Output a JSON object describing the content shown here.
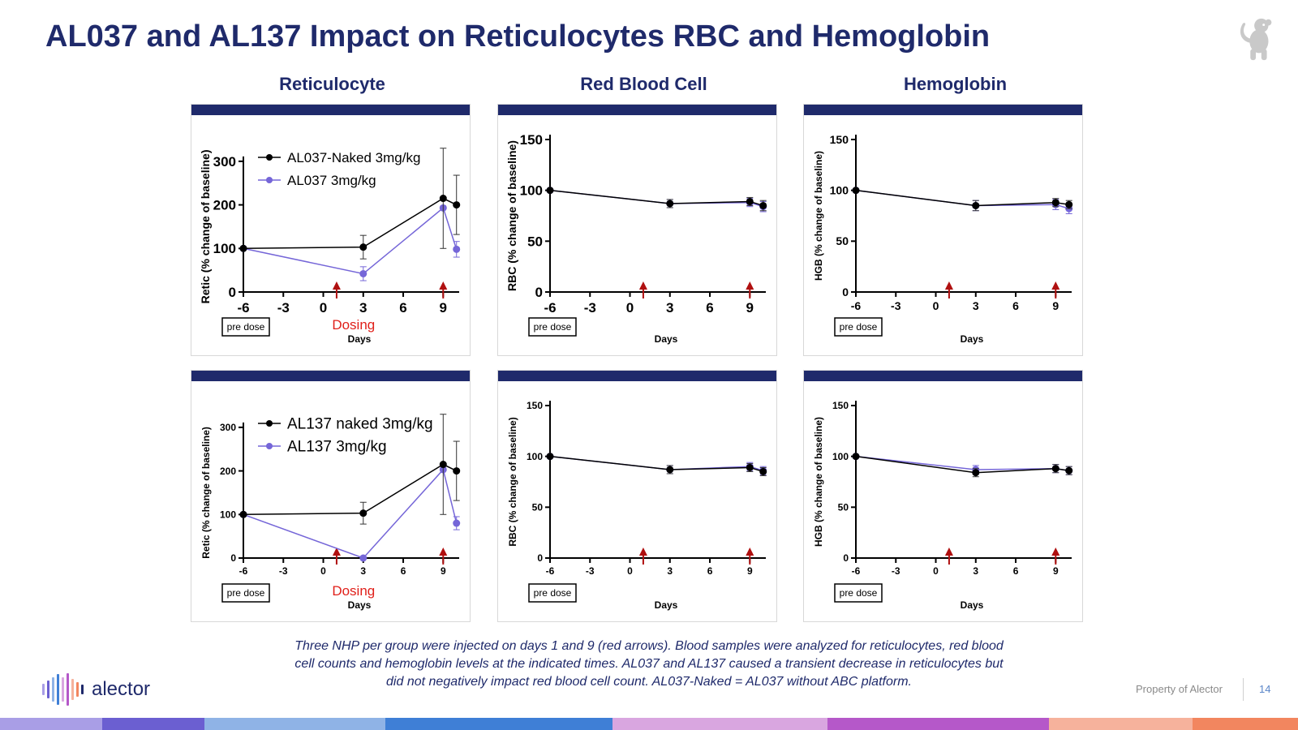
{
  "title": "AL037 and AL137 Impact on Reticulocytes RBC and Hemoglobin",
  "columns": [
    "Reticulocyte",
    "Red Blood Cell",
    "Hemoglobin"
  ],
  "caption": [
    "Three NHP per group were injected on days 1 and 9 (red arrows). Blood samples were analyzed for reticulocytes, red blood",
    "cell counts and hemoglobin levels at the indicated times. AL037 and AL137 caused a transient decrease in reticulocytes but",
    "did not negatively impact red blood cell count. AL037-Naked = AL037 without ABC platform."
  ],
  "footer": {
    "property": "Property of Alector",
    "page": "14",
    "logo": "alector"
  },
  "colors": {
    "navy": "#1f2a6b",
    "black_series": "#000000",
    "purple_series": "#7566d8",
    "arrow": "#b01010",
    "dosing_text": "#e0201a",
    "stripes": [
      "#a99ee6",
      "#6b5fd1",
      "#8fb3e6",
      "#3f7fd6",
      "#d9a6e0",
      "#b558c9",
      "#f6b29c",
      "#f2865f"
    ]
  },
  "icons": [
    "monkey-icon",
    "alector-logo-icon"
  ],
  "chart_data": [
    {
      "type": "line",
      "x": [
        -6,
        3,
        9,
        10
      ],
      "ylabel": "Retic (% change of baseline)",
      "xlabel": "Days",
      "ylim": [
        0,
        350
      ],
      "yticks": [
        0,
        100,
        200,
        300
      ],
      "xticks": [
        -6,
        -3,
        0,
        3,
        6,
        9
      ],
      "tick_style": "large",
      "dosing_days": [
        1,
        9
      ],
      "dosing_label": "Dosing",
      "predose_label": "pre dose",
      "legend_placement": "top-left",
      "series": [
        {
          "name": "AL037-Naked 3mg/kg",
          "color": "#000000",
          "values": [
            100,
            103,
            215,
            200
          ],
          "err": [
            0,
            27,
            115,
            68
          ]
        },
        {
          "name": "AL037 3mg/kg",
          "color": "#7566d8",
          "values": [
            100,
            42,
            193,
            98
          ],
          "err": [
            0,
            16,
            0,
            18
          ]
        }
      ]
    },
    {
      "type": "line",
      "x": [
        -6,
        3,
        9,
        10
      ],
      "ylabel": "RBC (% change of baseline)",
      "xlabel": "Days",
      "ylim": [
        0,
        150
      ],
      "yticks": [
        0,
        50,
        100,
        150
      ],
      "xticks": [
        -6,
        -3,
        0,
        3,
        6,
        9
      ],
      "tick_style": "large",
      "dosing_days": [
        1,
        9
      ],
      "predose_label": "pre dose",
      "series": [
        {
          "name": "",
          "color": "#000000",
          "values": [
            100,
            87,
            89,
            85
          ],
          "err": [
            0,
            4,
            4,
            5
          ]
        },
        {
          "name": "",
          "color": "#7566d8",
          "values": [
            100,
            87,
            88,
            84
          ],
          "err": [
            0,
            4,
            4,
            5
          ]
        }
      ]
    },
    {
      "type": "line",
      "x": [
        -6,
        3,
        9,
        10
      ],
      "ylabel": "HGB (% change of baseline)",
      "xlabel": "Days",
      "ylim": [
        0,
        150
      ],
      "yticks": [
        0,
        50,
        100,
        150
      ],
      "xticks": [
        -6,
        -3,
        0,
        3,
        6,
        9
      ],
      "tick_style": "medium",
      "dosing_days": [
        1,
        9
      ],
      "predose_label": "pre dose",
      "series": [
        {
          "name": "",
          "color": "#000000",
          "values": [
            100,
            85,
            88,
            86
          ],
          "err": [
            0,
            5,
            4,
            4
          ]
        },
        {
          "name": "",
          "color": "#7566d8",
          "values": [
            100,
            85,
            86,
            82
          ],
          "err": [
            0,
            5,
            5,
            5
          ]
        }
      ]
    },
    {
      "type": "line",
      "x": [
        -6,
        3,
        9,
        10
      ],
      "ylabel": "Retic (% change of baseline)",
      "xlabel": "Days",
      "ylim": [
        0,
        350
      ],
      "yticks": [
        0,
        100,
        200,
        300
      ],
      "xticks": [
        -6,
        -3,
        0,
        3,
        6,
        9
      ],
      "tick_style": "small",
      "dosing_days": [
        1,
        9
      ],
      "dosing_label": "Dosing",
      "predose_label": "pre dose",
      "legend_placement": "top-left",
      "series": [
        {
          "name": "AL137 naked 3mg/kg",
          "color": "#000000",
          "values": [
            100,
            103,
            215,
            200
          ],
          "err": [
            0,
            25,
            115,
            68
          ]
        },
        {
          "name": "AL137 3mg/kg",
          "color": "#7566d8",
          "values": [
            100,
            0,
            203,
            80
          ],
          "err": [
            0,
            0,
            0,
            15
          ]
        }
      ]
    },
    {
      "type": "line",
      "x": [
        -6,
        3,
        9,
        10
      ],
      "ylabel": "RBC (% change of baseline)",
      "xlabel": "Days",
      "ylim": [
        0,
        150
      ],
      "yticks": [
        0,
        50,
        100,
        150
      ],
      "xticks": [
        -6,
        -3,
        0,
        3,
        6,
        9
      ],
      "tick_style": "small",
      "dosing_days": [
        1,
        9
      ],
      "predose_label": "pre dose",
      "series": [
        {
          "name": "",
          "color": "#000000",
          "values": [
            100,
            87,
            89,
            85
          ],
          "err": [
            0,
            4,
            4,
            4
          ]
        },
        {
          "name": "",
          "color": "#7566d8",
          "values": [
            100,
            87,
            90,
            86
          ],
          "err": [
            0,
            4,
            4,
            4
          ]
        }
      ]
    },
    {
      "type": "line",
      "x": [
        -6,
        3,
        9,
        10
      ],
      "ylabel": "HGB (% change of baseline)",
      "xlabel": "Days",
      "ylim": [
        0,
        150
      ],
      "yticks": [
        0,
        50,
        100,
        150
      ],
      "xticks": [
        -6,
        -3,
        0,
        3,
        6,
        9
      ],
      "tick_style": "small",
      "dosing_days": [
        1,
        9
      ],
      "predose_label": "pre dose",
      "series": [
        {
          "name": "",
          "color": "#000000",
          "values": [
            100,
            84,
            88,
            86
          ],
          "err": [
            0,
            4,
            4,
            4
          ]
        },
        {
          "name": "",
          "color": "#7566d8",
          "values": [
            100,
            87,
            88,
            86
          ],
          "err": [
            0,
            4,
            4,
            4
          ]
        }
      ]
    }
  ]
}
